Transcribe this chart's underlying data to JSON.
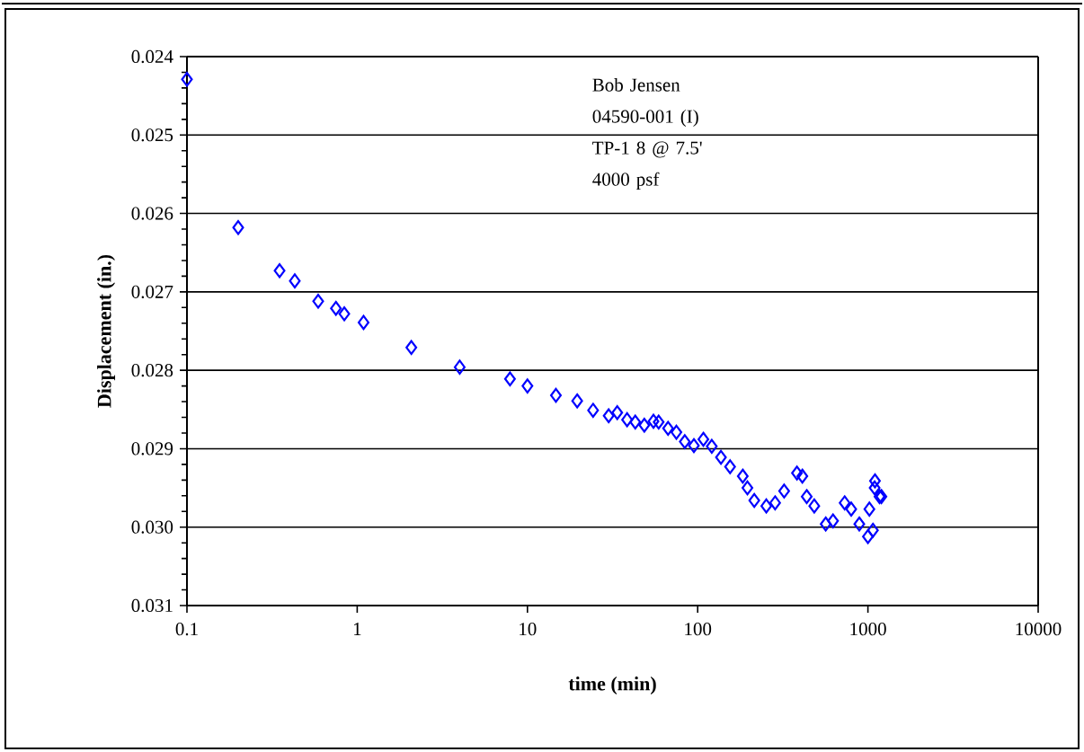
{
  "chart_data": {
    "type": "scatter",
    "xlabel": "time (min)",
    "ylabel": "Displacement (in.)",
    "annotations": [
      "Bob Jensen",
      "04590-001 (I)",
      "TP-1 8 @ 7.5'",
      "4000 psf"
    ],
    "log": "x",
    "grid": "y",
    "marker": "diamond",
    "xlim": [
      0.1,
      10000
    ],
    "xticks": [
      0.1,
      1,
      10,
      100,
      1000,
      10000
    ],
    "ylim": [
      0.031,
      0.024
    ],
    "yticks": [
      0.024,
      0.025,
      0.026,
      0.027,
      0.028,
      0.029,
      {
        "value": 0.03,
        "label": "0.030"
      },
      0.031
    ],
    "series": [
      {
        "color": "#0000ff",
        "x": [
          0.1,
          0.2,
          0.35,
          0.43,
          0.59,
          0.75,
          0.84,
          1.09,
          2.08,
          4.0,
          7.9,
          10,
          14.7,
          19.6,
          24.3,
          30,
          33.7,
          38.5,
          43,
          48.6,
          55,
          59,
          67,
          75,
          84,
          95,
          108,
          121,
          137,
          155,
          184,
          196,
          215,
          253,
          285,
          322,
          383,
          412,
          437,
          484,
          565,
          624,
          730,
          798,
          890,
          1000,
          1070,
          1020,
          1095,
          1100,
          1170,
          1200
        ],
        "values": [
          0.02429,
          0.02618,
          0.02673,
          0.02686,
          0.02712,
          0.02721,
          0.02728,
          0.02739,
          0.02771,
          0.02796,
          0.02811,
          0.0282,
          0.02832,
          0.02839,
          0.02851,
          0.02858,
          0.02854,
          0.02863,
          0.02866,
          0.0287,
          0.02865,
          0.02866,
          0.02874,
          0.02879,
          0.02891,
          0.02896,
          0.02888,
          0.02897,
          0.02911,
          0.02923,
          0.02935,
          0.0295,
          0.02966,
          0.02973,
          0.02969,
          0.02954,
          0.02931,
          0.02935,
          0.02961,
          0.02973,
          0.02996,
          0.02992,
          0.02969,
          0.02977,
          0.02996,
          0.03012,
          0.03004,
          0.02977,
          0.0295,
          0.02941,
          0.02961,
          0.02961
        ]
      }
    ]
  }
}
